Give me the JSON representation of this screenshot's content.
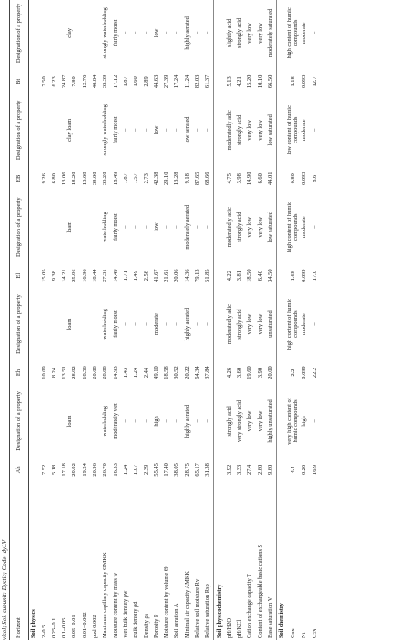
{
  "caption": "visol; Soil subunit: Dystic; Code: dyLV",
  "header": [
    "Horizont",
    "Ah",
    "Designation of a property",
    "Eh",
    "Designation of a property",
    "El",
    "Designation of a property",
    "EB",
    "Designation of a property",
    "Bt",
    "Designation of a property"
  ],
  "sections": [
    {
      "title": "Soil physics",
      "rows": [
        {
          "label": "2–0.5",
          "cells": [
            "7.52",
            "loam",
            "10.09",
            "loam",
            "15.05",
            "loam",
            "9.26",
            "clay loam",
            "7.50",
            "clay"
          ]
        },
        {
          "label": "0.25–0.1",
          "cells": [
            "5.18",
            null,
            "8.24",
            null,
            "9.38",
            null,
            "6.80",
            null,
            "6.23",
            null
          ]
        },
        {
          "label": "0.1–0.05",
          "cells": [
            "17.18",
            null,
            "13.51",
            null,
            "14.21",
            null,
            "13.06",
            null,
            "24.87",
            null
          ]
        },
        {
          "label": "0.05–0.01",
          "cells": [
            "29.92",
            null,
            "28.92",
            null,
            "25.96",
            null,
            "18.20",
            null,
            "7.80",
            null
          ]
        },
        {
          "label": "0.01–0.002",
          "cells": [
            "19.24",
            null,
            "18.56",
            null,
            "16.96",
            null,
            "13.68",
            null,
            "12.76",
            null
          ]
        },
        {
          "label": "pod 0.002",
          "cells": [
            "20.96",
            null,
            "20.08",
            null,
            "18.44",
            null,
            "39.00",
            null,
            "40.84",
            null
          ]
        },
        {
          "label": "Maximum capillary capacity ΘMKK",
          "cells": [
            "26.70",
            "waterholding",
            "28.88",
            "waterholding",
            "27.31",
            "waterholding",
            "33.20",
            "strongly waterholding",
            "33.39",
            "strongly waterholding"
          ]
        },
        {
          "label": "Moisture content by mass w",
          "cells": [
            "16.33",
            "moderately wet",
            "14.93",
            "fairly moist",
            "14.49",
            "fairly moist",
            "18.49",
            "fairly moist",
            "17.12",
            "fairly moist"
          ]
        },
        {
          "label": "Wet bulk density ρw",
          "cells": [
            "1.24",
            "–",
            "1.43",
            "–",
            "1.71",
            "–",
            "1.87",
            "–",
            "1.87",
            "–"
          ]
        },
        {
          "label": "Bulk density ρd",
          "cells": [
            "1.07",
            "–",
            "1.24",
            "–",
            "1.49",
            "–",
            "1.57",
            "–",
            "1.60",
            "–"
          ]
        },
        {
          "label": "Density ρs",
          "cells": [
            "2.39",
            "–",
            "2.44",
            "–",
            "2.56",
            "–",
            "2.73",
            "–",
            "2.89",
            "–"
          ]
        },
        {
          "label": "Porosity P",
          "cells": [
            "55.45",
            "high",
            "49.10",
            "moderate",
            "41.67",
            "low",
            "42.38",
            "low",
            "44.63",
            "low"
          ]
        },
        {
          "label": "Moisture content by volume Θ",
          "cells": [
            "17.40",
            "–",
            "18.58",
            "–",
            "21.61",
            "–",
            "29.10",
            "–",
            "27.39",
            "–"
          ]
        },
        {
          "label": "Soil aeration A",
          "cells": [
            "38.05",
            "–",
            "30.52",
            "–",
            "20.06",
            "–",
            "13.28",
            "–",
            "17.24",
            "–"
          ]
        },
        {
          "label": "Minimal air capacity AMKK",
          "cells": [
            "28.75",
            "highly aerated",
            "20.22",
            "highly aerated",
            "14.36",
            "moderately aerated",
            "9.18",
            "low aerated",
            "11.24",
            "highly aerated"
          ]
        },
        {
          "label": "Relative soil moisture Rv",
          "cells": [
            "65.17",
            "–",
            "64.34",
            "–",
            "79.13",
            "–",
            "87.65",
            "–",
            "82.03",
            "–"
          ]
        },
        {
          "label": "Relative saturation Rsp",
          "cells": [
            "31.38",
            "–",
            "37.84",
            "–",
            "51.85",
            "–",
            "68.66",
            "–",
            "61.37",
            "–"
          ]
        }
      ]
    },
    {
      "title": "Soil physicochemistry",
      "rows": [
        {
          "label": "pH/H2O",
          "cells": [
            "3.92",
            "strongly acid",
            "4.26",
            "moderatedly adic",
            "4.22",
            "moderatedly adic",
            "4.75",
            "moderatedly adic",
            "5.13",
            "slightly acid"
          ]
        },
        {
          "label": "pH/KCl",
          "cells": [
            "3.33",
            "very strongly acid",
            "3.60",
            "strongly acid",
            "3.81",
            "strongly acid",
            "3.98",
            "strongly acid",
            "4.21",
            "strongly acid"
          ]
        },
        {
          "label": "Cation exchange capacity T",
          "cells": [
            "27.4",
            "very low",
            "19.60",
            "very low",
            "18.50",
            "very low",
            "14.90",
            "very low",
            "15.20",
            "very low"
          ]
        },
        {
          "label": "Content of exchangeable basic cations S",
          "cells": [
            "2.60",
            "very low",
            "3.90",
            "very low",
            "6.40",
            "very low",
            "6.60",
            "very low",
            "10.10",
            "very low"
          ]
        },
        {
          "label": "Base saturation V",
          "cells": [
            "9.60",
            "highly unsaturated",
            "20.00",
            "unsaturated",
            "34.50",
            "low saturated",
            "44.01",
            "low saturated",
            "66.50",
            "moderately saturated"
          ]
        }
      ]
    },
    {
      "title": "Soil chemistry",
      "rows": [
        {
          "label": "Cox",
          "cells": [
            "4.4",
            "very high content of humic compounds",
            "2.2",
            "high content of humic compounds",
            "1.68",
            "high content of humic compounds",
            "0.80",
            "low content of humic compounds",
            "1.18",
            "high content of humic compounds"
          ]
        },
        {
          "label": "Nt",
          "cells": [
            "0.26",
            "high",
            "0.099",
            "moderate",
            "0.099",
            "moderate",
            "0.093",
            "moderate",
            "0.093",
            "moderate"
          ]
        },
        {
          "label": "C:N",
          "cells": [
            "16.9",
            "–",
            "22.2",
            "–",
            "17.0",
            "–",
            "8.6",
            "–",
            "12.7",
            "–"
          ]
        }
      ]
    }
  ]
}
